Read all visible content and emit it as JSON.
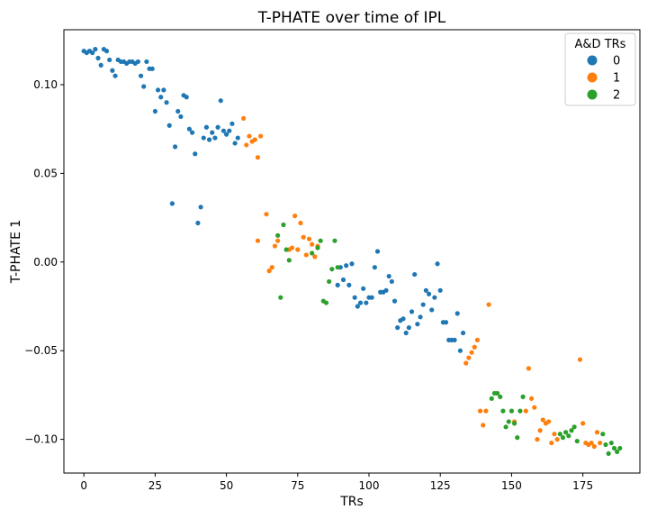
{
  "chart_data": {
    "type": "scatter",
    "title": "T-PHATE over time of IPL",
    "xlabel": "TRs",
    "ylabel": "T-PHATE 1",
    "xlim": [
      -7,
      195
    ],
    "ylim": [
      -0.119,
      0.131
    ],
    "xticks": [
      0,
      25,
      50,
      75,
      100,
      125,
      150,
      175
    ],
    "yticks": [
      0.1,
      0.05,
      0.0,
      -0.05,
      -0.1
    ],
    "ytick_labels": [
      "0.10",
      "0.05",
      "0.00",
      "−0.05",
      "−0.10"
    ],
    "grid": false,
    "legend": {
      "title": "A&D TRs",
      "position": "top-right"
    },
    "series": [
      {
        "name": "0",
        "color": "#1f77b4",
        "points": [
          [
            0,
            0.119
          ],
          [
            1,
            0.118
          ],
          [
            2,
            0.119
          ],
          [
            3,
            0.118
          ],
          [
            4,
            0.12
          ],
          [
            5,
            0.115
          ],
          [
            6,
            0.111
          ],
          [
            7,
            0.12
          ],
          [
            8,
            0.119
          ],
          [
            9,
            0.114
          ],
          [
            10,
            0.108
          ],
          [
            11,
            0.105
          ],
          [
            12,
            0.114
          ],
          [
            13,
            0.113
          ],
          [
            14,
            0.113
          ],
          [
            15,
            0.112
          ],
          [
            16,
            0.113
          ],
          [
            17,
            0.113
          ],
          [
            18,
            0.112
          ],
          [
            19,
            0.113
          ],
          [
            20,
            0.105
          ],
          [
            21,
            0.099
          ],
          [
            22,
            0.113
          ],
          [
            23,
            0.109
          ],
          [
            24,
            0.109
          ],
          [
            25,
            0.085
          ],
          [
            26,
            0.097
          ],
          [
            27,
            0.093
          ],
          [
            28,
            0.097
          ],
          [
            29,
            0.09
          ],
          [
            30,
            0.077
          ],
          [
            31,
            0.033
          ],
          [
            32,
            0.065
          ],
          [
            33,
            0.085
          ],
          [
            34,
            0.082
          ],
          [
            35,
            0.094
          ],
          [
            36,
            0.093
          ],
          [
            37,
            0.075
          ],
          [
            38,
            0.073
          ],
          [
            39,
            0.061
          ],
          [
            40,
            0.022
          ],
          [
            41,
            0.031
          ],
          [
            42,
            0.07
          ],
          [
            43,
            0.076
          ],
          [
            44,
            0.069
          ],
          [
            45,
            0.073
          ],
          [
            46,
            0.07
          ],
          [
            47,
            0.076
          ],
          [
            48,
            0.091
          ],
          [
            49,
            0.074
          ],
          [
            50,
            0.072
          ],
          [
            51,
            0.074
          ],
          [
            52,
            0.078
          ],
          [
            53,
            0.067
          ],
          [
            54,
            0.07
          ],
          [
            89,
            -0.013
          ],
          [
            90,
            -0.003
          ],
          [
            91,
            -0.01
          ],
          [
            92,
            -0.002
          ],
          [
            93,
            -0.013
          ],
          [
            94,
            -0.001
          ],
          [
            95,
            -0.02
          ],
          [
            96,
            -0.025
          ],
          [
            97,
            -0.023
          ],
          [
            98,
            -0.015
          ],
          [
            99,
            -0.023
          ],
          [
            100,
            -0.02
          ],
          [
            101,
            -0.02
          ],
          [
            102,
            -0.003
          ],
          [
            103,
            0.006
          ],
          [
            104,
            -0.017
          ],
          [
            105,
            -0.017
          ],
          [
            106,
            -0.016
          ],
          [
            107,
            -0.008
          ],
          [
            108,
            -0.011
          ],
          [
            109,
            -0.022
          ],
          [
            110,
            -0.037
          ],
          [
            111,
            -0.033
          ],
          [
            112,
            -0.032
          ],
          [
            113,
            -0.04
          ],
          [
            114,
            -0.037
          ],
          [
            115,
            -0.028
          ],
          [
            116,
            -0.007
          ],
          [
            117,
            -0.035
          ],
          [
            118,
            -0.031
          ],
          [
            119,
            -0.024
          ],
          [
            120,
            -0.016
          ],
          [
            121,
            -0.018
          ],
          [
            122,
            -0.027
          ],
          [
            123,
            -0.02
          ],
          [
            124,
            -0.001
          ],
          [
            125,
            -0.016
          ],
          [
            126,
            -0.034
          ],
          [
            127,
            -0.034
          ],
          [
            128,
            -0.044
          ],
          [
            129,
            -0.044
          ],
          [
            130,
            -0.044
          ],
          [
            131,
            -0.029
          ],
          [
            132,
            -0.05
          ],
          [
            133,
            -0.04
          ]
        ]
      },
      {
        "name": "1",
        "color": "#ff7f0e",
        "points": [
          [
            56,
            0.081
          ],
          [
            57,
            0.066
          ],
          [
            58,
            0.071
          ],
          [
            59,
            0.068
          ],
          [
            60,
            0.069
          ],
          [
            61,
            0.059
          ],
          [
            62,
            0.071
          ],
          [
            61,
            0.012
          ],
          [
            64,
            0.027
          ],
          [
            65,
            -0.005
          ],
          [
            66,
            -0.003
          ],
          [
            67,
            0.009
          ],
          [
            68,
            0.012
          ],
          [
            72,
            0.007
          ],
          [
            73,
            0.008
          ],
          [
            74,
            0.026
          ],
          [
            75,
            0.007
          ],
          [
            76,
            0.022
          ],
          [
            77,
            0.014
          ],
          [
            78,
            0.004
          ],
          [
            79,
            0.013
          ],
          [
            80,
            0.01
          ],
          [
            81,
            0.003
          ],
          [
            82,
            0.009
          ],
          [
            134,
            -0.057
          ],
          [
            135,
            -0.054
          ],
          [
            136,
            -0.051
          ],
          [
            137,
            -0.048
          ],
          [
            138,
            -0.044
          ],
          [
            139,
            -0.084
          ],
          [
            140,
            -0.092
          ],
          [
            141,
            -0.084
          ],
          [
            142,
            -0.024
          ],
          [
            151,
            -0.09
          ],
          [
            155,
            -0.084
          ],
          [
            156,
            -0.06
          ],
          [
            157,
            -0.077
          ],
          [
            158,
            -0.082
          ],
          [
            159,
            -0.1
          ],
          [
            160,
            -0.095
          ],
          [
            161,
            -0.089
          ],
          [
            162,
            -0.091
          ],
          [
            163,
            -0.09
          ],
          [
            164,
            -0.102
          ],
          [
            165,
            -0.097
          ],
          [
            166,
            -0.1
          ],
          [
            174,
            -0.055
          ],
          [
            175,
            -0.091
          ],
          [
            176,
            -0.102
          ],
          [
            177,
            -0.103
          ],
          [
            178,
            -0.102
          ],
          [
            179,
            -0.104
          ],
          [
            180,
            -0.096
          ],
          [
            181,
            -0.102
          ]
        ]
      },
      {
        "name": "2",
        "color": "#2ca02c",
        "points": [
          [
            68,
            0.015
          ],
          [
            69,
            -0.02
          ],
          [
            70,
            0.021
          ],
          [
            71,
            0.007
          ],
          [
            72,
            0.001
          ],
          [
            80,
            0.005
          ],
          [
            82,
            0.008
          ],
          [
            83,
            0.012
          ],
          [
            84,
            -0.022
          ],
          [
            85,
            -0.023
          ],
          [
            86,
            -0.011
          ],
          [
            87,
            -0.004
          ],
          [
            88,
            0.012
          ],
          [
            89,
            -0.003
          ],
          [
            143,
            -0.077
          ],
          [
            144,
            -0.074
          ],
          [
            145,
            -0.074
          ],
          [
            146,
            -0.076
          ],
          [
            147,
            -0.084
          ],
          [
            148,
            -0.093
          ],
          [
            149,
            -0.09
          ],
          [
            150,
            -0.084
          ],
          [
            151,
            -0.091
          ],
          [
            152,
            -0.099
          ],
          [
            153,
            -0.084
          ],
          [
            154,
            -0.076
          ],
          [
            167,
            -0.097
          ],
          [
            168,
            -0.099
          ],
          [
            169,
            -0.096
          ],
          [
            170,
            -0.098
          ],
          [
            171,
            -0.095
          ],
          [
            172,
            -0.093
          ],
          [
            173,
            -0.101
          ],
          [
            182,
            -0.097
          ],
          [
            183,
            -0.103
          ],
          [
            184,
            -0.108
          ],
          [
            185,
            -0.102
          ],
          [
            186,
            -0.105
          ],
          [
            187,
            -0.107
          ],
          [
            188,
            -0.105
          ]
        ]
      }
    ]
  }
}
